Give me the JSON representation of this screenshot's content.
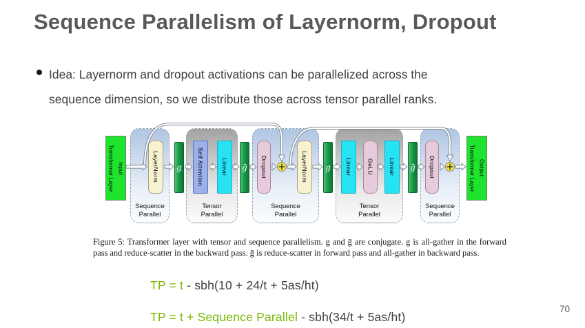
{
  "slide": {
    "title": "Sequence Parallelism of Layernorm, Dropout",
    "page_number": "70"
  },
  "bullet": {
    "line1": "Idea: Layernorm and dropout activations can be parallelized across the",
    "line2": "sequence dimension, so we distribute those across tensor parallel ranks."
  },
  "diagram": {
    "input_box": {
      "line1": "Transformer Layer",
      "line2": "Input"
    },
    "output_box": {
      "line1": "Transformer Layer",
      "line2": "Output"
    },
    "containers": [
      {
        "type": "sequence-parallel",
        "label_line1": "Sequence",
        "label_line2": "Parallel"
      },
      {
        "type": "tensor-parallel",
        "label_line1": "Tensor",
        "label_line2": "Parallel"
      },
      {
        "type": "sequence-parallel",
        "label_line1": "Sequence",
        "label_line2": "Parallel"
      },
      {
        "type": "tensor-parallel",
        "label_line1": "Tensor",
        "label_line2": "Parallel"
      },
      {
        "type": "sequence-parallel",
        "label_line1": "Sequence",
        "label_line2": "Parallel"
      }
    ],
    "blocks": {
      "layernorm1": "LayerNorm",
      "self_attention": "Self Attention",
      "linear1": "Linear",
      "dropout1": "Dropout",
      "layernorm2": "LayerNorm",
      "linear2": "Linear",
      "gelu": "GeLU",
      "linear3": "Linear",
      "dropout2": "Dropout"
    },
    "gather_ops": {
      "g1": "g",
      "gbar1": "ḡ",
      "g2": "g",
      "gbar2": "ḡ"
    },
    "colors": {
      "endpoint_green": "#1fe42e",
      "gather_bar_green": "#1a9c4b",
      "layernorm_cream": "#f9f2d0",
      "self_attention_periwinkle": "#9cb0ec",
      "linear_cyan": "#26e2f3",
      "dropout_gelu_pink": "#e7cadb",
      "add_node_yellow": "#f4e73c",
      "sequence_container_blue": "#b0c6e4",
      "tensor_container_gray": "#a2a2a2"
    }
  },
  "figure": {
    "caption": "Figure 5: Transformer layer with tensor and sequence parallelism. g and ḡ are conjugate. g is all-gather in the forward pass and reduce-scatter in the backward pass. ḡ is reduce-scatter in forward pass and all-gather in backward pass."
  },
  "formulas": [
    {
      "highlight": "TP = t",
      "rest": " - sbh(10 + 24/t + 5as/ht)"
    },
    {
      "highlight": "TP = t + Sequence Parallel",
      "rest": " - sbh(34/t + 5as/ht)"
    }
  ],
  "colors": {
    "accent_green": "#76b900",
    "title_gray": "#595959",
    "body_gray": "#3f3f3f"
  }
}
